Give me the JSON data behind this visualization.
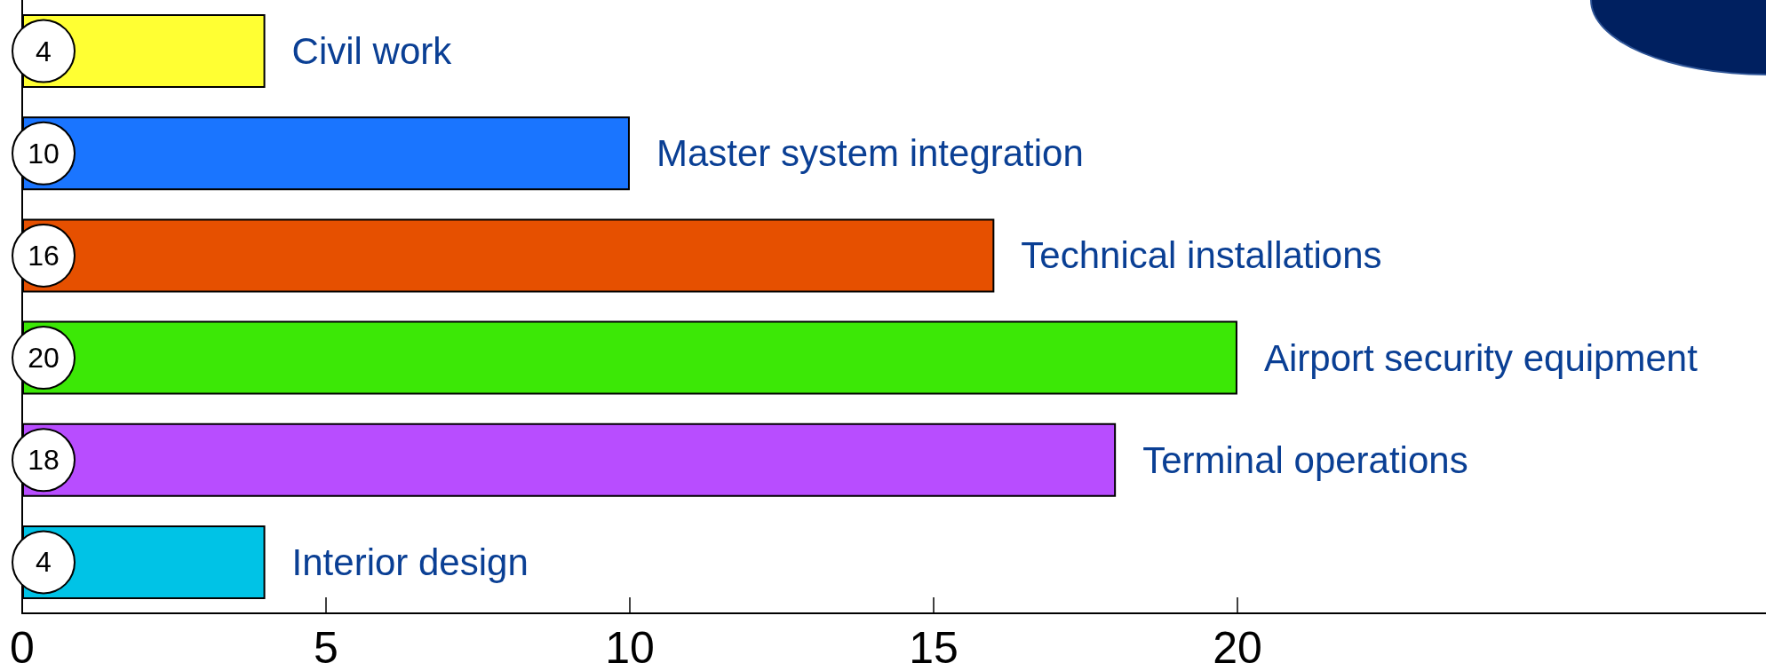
{
  "chart_data": {
    "type": "bar",
    "orientation": "horizontal",
    "categories": [
      "Civil work",
      "Master system integration",
      "Technical installations",
      "Airport security equipment",
      "Terminal operations",
      "Interior design"
    ],
    "values": [
      4,
      10,
      16,
      20,
      18,
      4
    ],
    "colors": [
      "#ffff33",
      "#1a75ff",
      "#e65000",
      "#3ce806",
      "#b84dff",
      "#00c3e6"
    ],
    "xlim": [
      0,
      28.7
    ],
    "xticks": [
      0,
      5,
      10,
      15,
      20
    ],
    "data_labels": true
  }
}
